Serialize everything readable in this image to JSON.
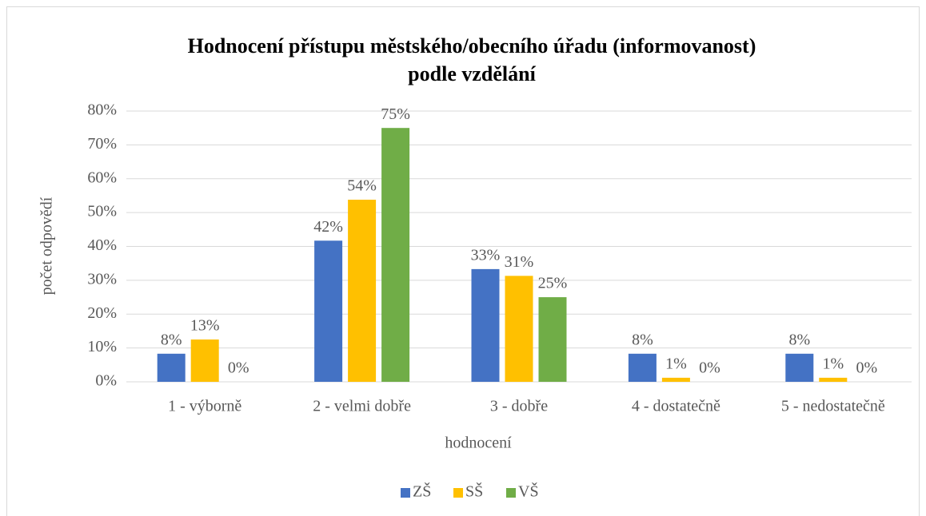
{
  "chart_data": {
    "type": "bar",
    "title": [
      "Hodnocení přístupu městského/obecního úřadu (informovanost)",
      "podle vzdělání"
    ],
    "x_label": "hodnocení",
    "y_label": "počet odpovědí",
    "categories": [
      "1 - výborně",
      "2 - velmi dobře",
      "3 - dobře",
      "4 - dostatečně",
      "5 - nedostatečně"
    ],
    "series": [
      {
        "name": "ZŠ",
        "color": "#4472c4",
        "values": [
          8.3,
          41.7,
          33.3,
          8.3,
          8.3
        ],
        "value_labels": [
          "8%",
          "42%",
          "33%",
          "8%",
          "8%"
        ]
      },
      {
        "name": "SŠ",
        "color": "#ffc000",
        "values": [
          12.5,
          53.8,
          31.3,
          1.2,
          1.2
        ],
        "value_labels": [
          "13%",
          "54%",
          "31%",
          "1%",
          "1%"
        ]
      },
      {
        "name": "VŠ",
        "color": "#70ad47",
        "values": [
          0,
          75,
          25,
          0,
          0
        ],
        "value_labels": [
          "0%",
          "75%",
          "25%",
          "0%",
          "0%"
        ]
      }
    ],
    "ylim": [
      0,
      80
    ],
    "yticks": [
      {
        "value": 0,
        "label": "0%"
      },
      {
        "value": 10,
        "label": "10%"
      },
      {
        "value": 20,
        "label": "20%"
      },
      {
        "value": 30,
        "label": "30%"
      },
      {
        "value": 40,
        "label": "40%"
      },
      {
        "value": 50,
        "label": "50%"
      },
      {
        "value": 60,
        "label": "60%"
      },
      {
        "value": 70,
        "label": "70%"
      },
      {
        "value": 80,
        "label": "80%"
      }
    ],
    "grid": true,
    "legend": "bottom"
  }
}
